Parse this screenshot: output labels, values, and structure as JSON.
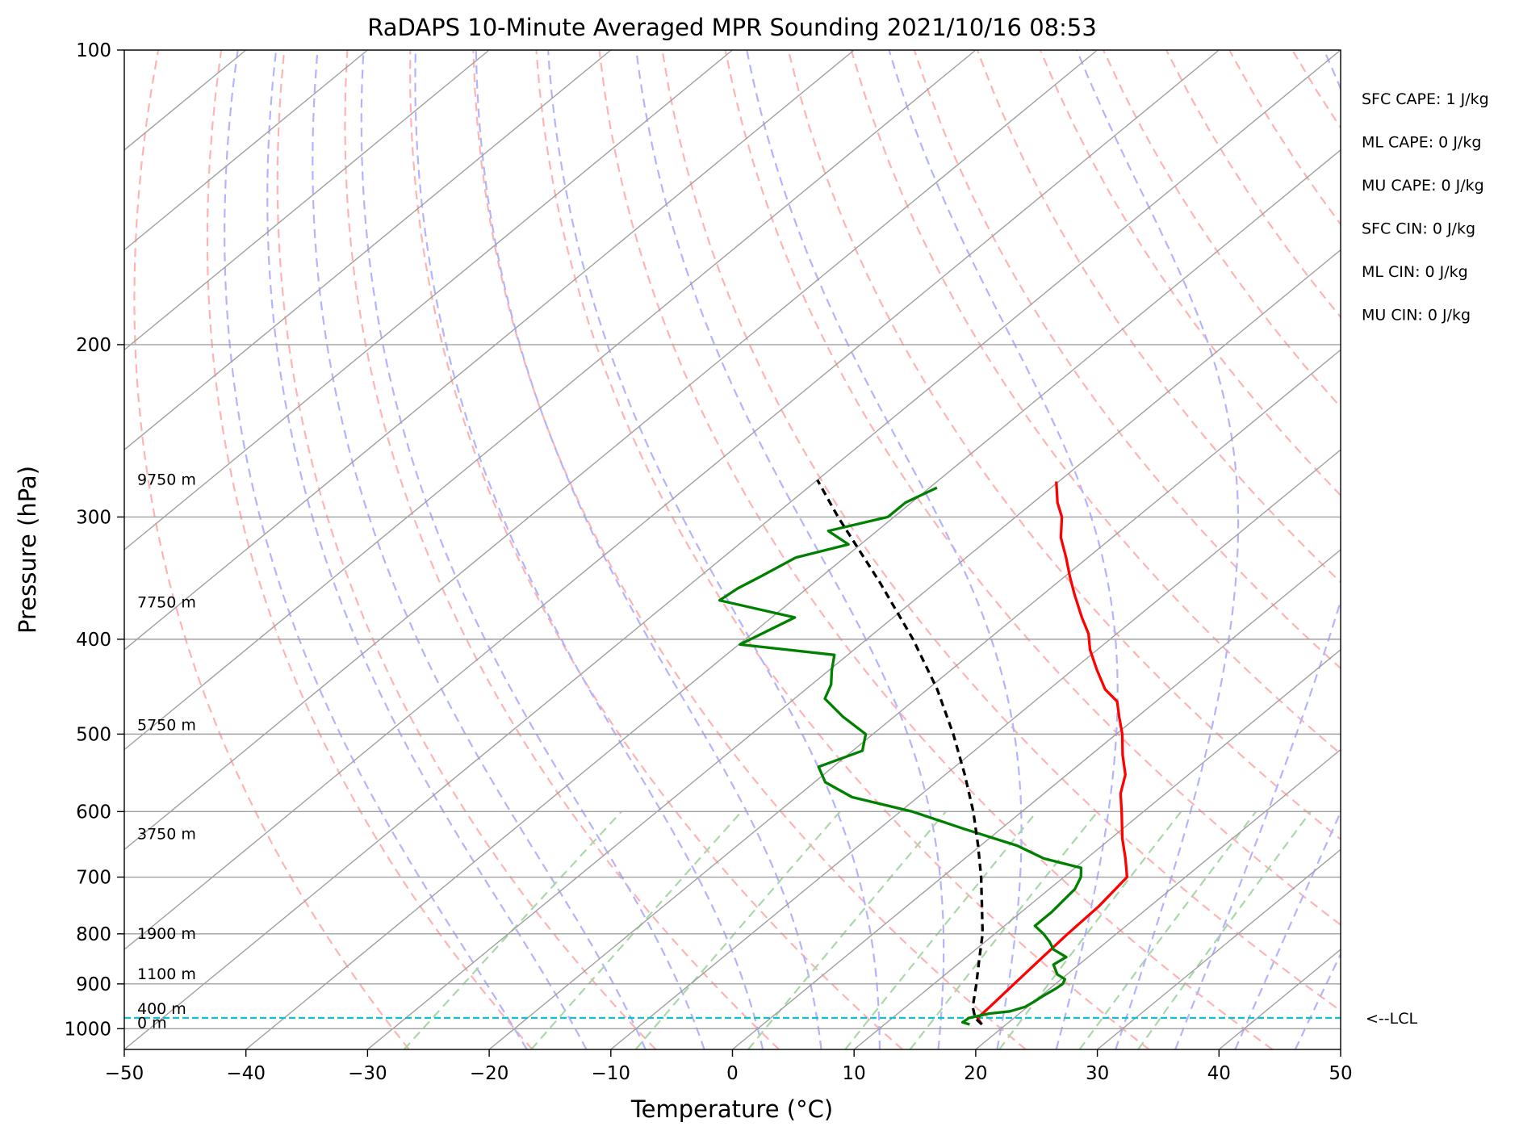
{
  "chart_data": {
    "type": "line",
    "title": "RaDAPS 10-Minute Averaged MPR Sounding 2021/10/16 08:53",
    "xlabel": "Temperature (°C)",
    "ylabel": "Pressure (hPa)",
    "xlim": [
      -50,
      50
    ],
    "ylim": [
      1050,
      100
    ],
    "y_scale": "log",
    "skew": "skew-T",
    "grid": true,
    "x_ticks": [
      "−50",
      "−40",
      "−30",
      "−20",
      "−10",
      "0",
      "10",
      "20",
      "30",
      "40",
      "50"
    ],
    "y_ticks": [
      {
        "p": 100,
        "label": "100"
      },
      {
        "p": 200,
        "label": "200"
      },
      {
        "p": 300,
        "label": "300"
      },
      {
        "p": 400,
        "label": "400"
      },
      {
        "p": 500,
        "label": "500"
      },
      {
        "p": 600,
        "label": "600"
      },
      {
        "p": 700,
        "label": "700"
      },
      {
        "p": 800,
        "label": "800"
      },
      {
        "p": 900,
        "label": "900"
      },
      {
        "p": 1000,
        "label": "1000"
      }
    ],
    "height_labels": [
      {
        "p": 987,
        "label": "0 m"
      },
      {
        "p": 955,
        "label": "400 m"
      },
      {
        "p": 880,
        "label": "1100 m"
      },
      {
        "p": 800,
        "label": "1900 m"
      },
      {
        "p": 633,
        "label": "3750 m"
      },
      {
        "p": 490,
        "label": "5750 m"
      },
      {
        "p": 367,
        "label": "7750 m"
      },
      {
        "p": 275,
        "label": "9750 m"
      }
    ],
    "indices": [
      "SFC CAPE: 1 J/kg",
      "ML CAPE: 0 J/kg",
      "MU CAPE: 0 J/kg",
      "SFC CIN: 0 J/kg",
      "ML CIN: 0 J/kg",
      "MU CIN: 0 J/kg"
    ],
    "lcl": {
      "p": 975,
      "label": "<--LCL"
    },
    "colors": {
      "temperature": "#ff0000",
      "dewpoint": "#008000",
      "parcel": "#000000",
      "lcl": "#17becf",
      "dry_adiabat": "#ffb3b3",
      "moist_adiabat": "#b3b3ff",
      "mixing_ratio": "#a8d8a8",
      "isotherm": "#a0a0a0"
    },
    "series": [
      {
        "id": "temperature",
        "points": [
          [
            990,
            18.0
          ],
          [
            975,
            17.0
          ],
          [
            950,
            16.9
          ],
          [
            900,
            16.6
          ],
          [
            850,
            16.3
          ],
          [
            800,
            16.0
          ],
          [
            750,
            15.8
          ],
          [
            700,
            15.2
          ],
          [
            670,
            13.2
          ],
          [
            640,
            11.0
          ],
          [
            600,
            8.2
          ],
          [
            575,
            6.3
          ],
          [
            550,
            4.8
          ],
          [
            525,
            2.6
          ],
          [
            500,
            0.5
          ],
          [
            480,
            -1.5
          ],
          [
            463,
            -3.2
          ],
          [
            450,
            -5.4
          ],
          [
            430,
            -8.0
          ],
          [
            410,
            -10.6
          ],
          [
            395,
            -12.3
          ],
          [
            380,
            -14.5
          ],
          [
            360,
            -17.4
          ],
          [
            345,
            -19.6
          ],
          [
            330,
            -21.8
          ],
          [
            315,
            -24.2
          ],
          [
            300,
            -26.2
          ],
          [
            290,
            -28.0
          ],
          [
            276,
            -30.2
          ]
        ]
      },
      {
        "id": "dewpoint",
        "points": [
          [
            990,
            17.0
          ],
          [
            985,
            16.2
          ],
          [
            975,
            16.3
          ],
          [
            965,
            17.5
          ],
          [
            960,
            19.0
          ],
          [
            950,
            19.8
          ],
          [
            940,
            20.0
          ],
          [
            925,
            20.2
          ],
          [
            910,
            20.5
          ],
          [
            900,
            20.6
          ],
          [
            890,
            20.3
          ],
          [
            880,
            19.2
          ],
          [
            860,
            17.9
          ],
          [
            845,
            18.2
          ],
          [
            830,
            16.4
          ],
          [
            815,
            15.3
          ],
          [
            800,
            14.0
          ],
          [
            785,
            12.5
          ],
          [
            760,
            12.5
          ],
          [
            740,
            12.3
          ],
          [
            720,
            12.1
          ],
          [
            700,
            11.4
          ],
          [
            685,
            10.5
          ],
          [
            670,
            6.5
          ],
          [
            650,
            3.0
          ],
          [
            625,
            -3.0
          ],
          [
            600,
            -9.0
          ],
          [
            580,
            -15.4
          ],
          [
            560,
            -19.1
          ],
          [
            540,
            -21.2
          ],
          [
            520,
            -19.2
          ],
          [
            500,
            -20.6
          ],
          [
            480,
            -24.2
          ],
          [
            460,
            -27.5
          ],
          [
            445,
            -28.4
          ],
          [
            430,
            -29.8
          ],
          [
            415,
            -31.1
          ],
          [
            405,
            -39.9
          ],
          [
            380,
            -38.1
          ],
          [
            365,
            -46.0
          ],
          [
            355,
            -45.7
          ],
          [
            345,
            -45.0
          ],
          [
            330,
            -44.0
          ],
          [
            320,
            -41.0
          ],
          [
            310,
            -44.0
          ],
          [
            300,
            -40.5
          ],
          [
            290,
            -40.5
          ],
          [
            280,
            -39.4
          ]
        ]
      },
      {
        "id": "parcel",
        "points": [
          [
            990,
            18.0
          ],
          [
            975,
            16.8
          ],
          [
            950,
            15.5
          ],
          [
            900,
            13.5
          ],
          [
            850,
            11.3
          ],
          [
            800,
            9.0
          ],
          [
            750,
            6.2
          ],
          [
            700,
            3.2
          ],
          [
            650,
            -0.2
          ],
          [
            600,
            -4.0
          ],
          [
            550,
            -8.4
          ],
          [
            500,
            -13.4
          ],
          [
            450,
            -19.2
          ],
          [
            400,
            -26.2
          ],
          [
            350,
            -34.6
          ],
          [
            300,
            -44.6
          ],
          [
            275,
            -50.0
          ]
        ]
      }
    ]
  }
}
